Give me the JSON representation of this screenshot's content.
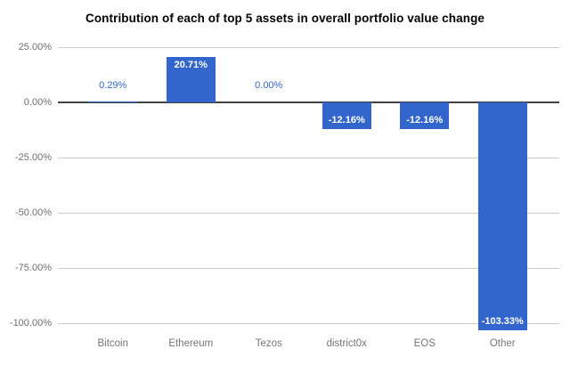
{
  "title": "Contribution of each of top 5 assets in overall portfolio value change",
  "chart_data": {
    "type": "bar",
    "title": "Contribution of each of top 5 assets in overall portfolio value change",
    "categories": [
      "Bitcoin",
      "Ethereum",
      "Tezos",
      "district0x",
      "EOS",
      "Other"
    ],
    "values": [
      0.29,
      20.71,
      0.0,
      -12.16,
      -12.16,
      -103.33
    ],
    "value_labels": [
      "0.29%",
      "20.71%",
      "0.00%",
      "-12.16%",
      "-12.16%",
      "-103.33%"
    ],
    "xlabel": "",
    "ylabel": "",
    "y_ticks": [
      {
        "value": 25,
        "label": "25.00%"
      },
      {
        "value": 0,
        "label": "0.00%"
      },
      {
        "value": -25,
        "label": "-25.00%"
      },
      {
        "value": -50,
        "label": "-50.00%"
      },
      {
        "value": -75,
        "label": "-75.00%"
      },
      {
        "value": -100,
        "label": "-100.00%"
      }
    ],
    "ylim": [
      -103.33,
      25
    ],
    "grid": "on",
    "legend": "none",
    "colors": {
      "bar": "#3366cc",
      "annotation_outside_text": "#3366cc",
      "annotation_inside_text": "#ffffff",
      "gridline": "#cccccc",
      "zero_baseline": "#424242",
      "axis_text": "#6f6f6f",
      "category_text": "#757575",
      "title_text": "#000000",
      "background": "#ffffff"
    }
  }
}
